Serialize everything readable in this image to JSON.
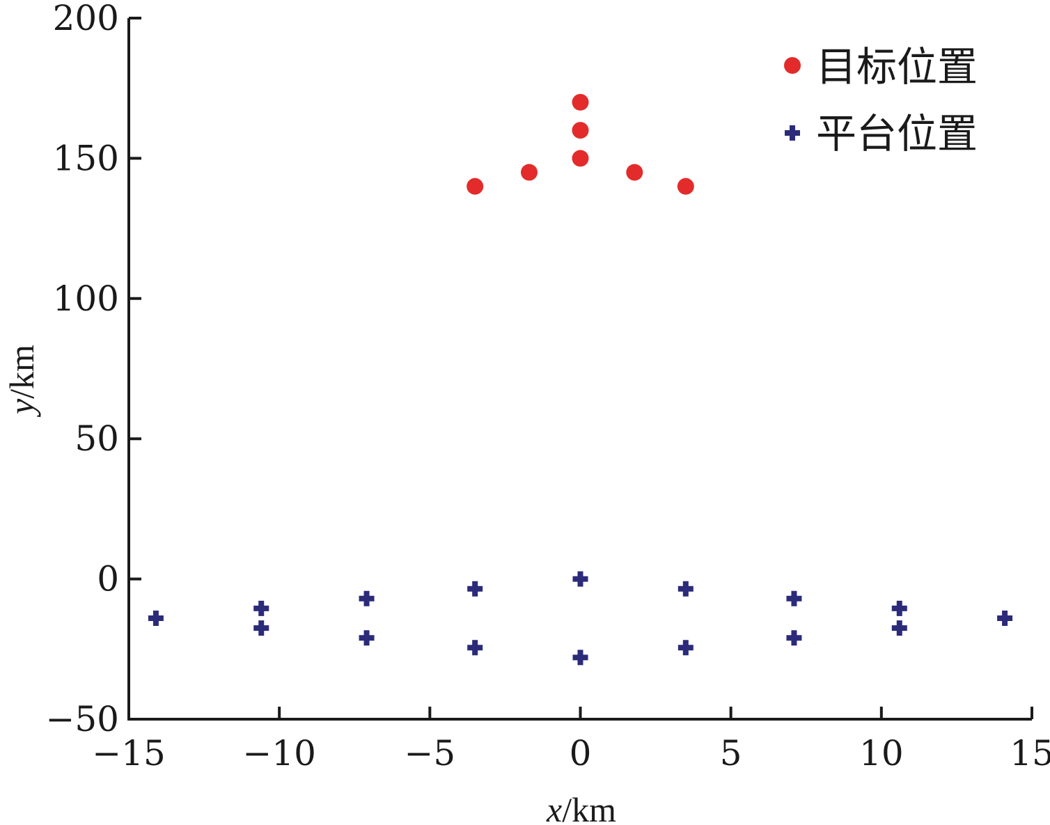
{
  "chart_data": {
    "type": "scatter",
    "xlabel_var": "x",
    "xlabel_unit": "/km",
    "ylabel_var": "y",
    "ylabel_unit": "/km",
    "xlim": [
      -15,
      15
    ],
    "ylim": [
      -50,
      200
    ],
    "xticks": [
      -15,
      -10,
      -5,
      0,
      5,
      10,
      15
    ],
    "xtick_labels": [
      "−15",
      "−10",
      "−5",
      "0",
      "5",
      "10",
      "15"
    ],
    "yticks": [
      -50,
      0,
      50,
      100,
      150,
      200
    ],
    "ytick_labels": [
      "−50",
      "0",
      "50",
      "100",
      "150",
      "200"
    ],
    "grid": false,
    "legend_position": "top-right",
    "series": [
      {
        "name": "目标位置",
        "marker": "circle",
        "color": "#e32b2b",
        "points": [
          {
            "x": -3.5,
            "y": 140
          },
          {
            "x": -1.7,
            "y": 145
          },
          {
            "x": 0,
            "y": 150
          },
          {
            "x": 0,
            "y": 160
          },
          {
            "x": 0,
            "y": 170
          },
          {
            "x": 1.8,
            "y": 145
          },
          {
            "x": 3.5,
            "y": 140
          }
        ]
      },
      {
        "name": "平台位置",
        "marker": "plus",
        "color": "#2b2b7a",
        "points": [
          {
            "x": -14.1,
            "y": -14
          },
          {
            "x": -10.6,
            "y": -10.5
          },
          {
            "x": -10.6,
            "y": -17.5
          },
          {
            "x": -7.1,
            "y": -7
          },
          {
            "x": -7.1,
            "y": -21
          },
          {
            "x": -3.5,
            "y": -3.5
          },
          {
            "x": -3.5,
            "y": -24.5
          },
          {
            "x": 0,
            "y": 0
          },
          {
            "x": 0,
            "y": -28
          },
          {
            "x": 3.5,
            "y": -3.5
          },
          {
            "x": 3.5,
            "y": -24.5
          },
          {
            "x": 7.1,
            "y": -7
          },
          {
            "x": 7.1,
            "y": -21
          },
          {
            "x": 10.6,
            "y": -10.5
          },
          {
            "x": 10.6,
            "y": -17.5
          },
          {
            "x": 14.1,
            "y": -14
          }
        ]
      }
    ]
  }
}
